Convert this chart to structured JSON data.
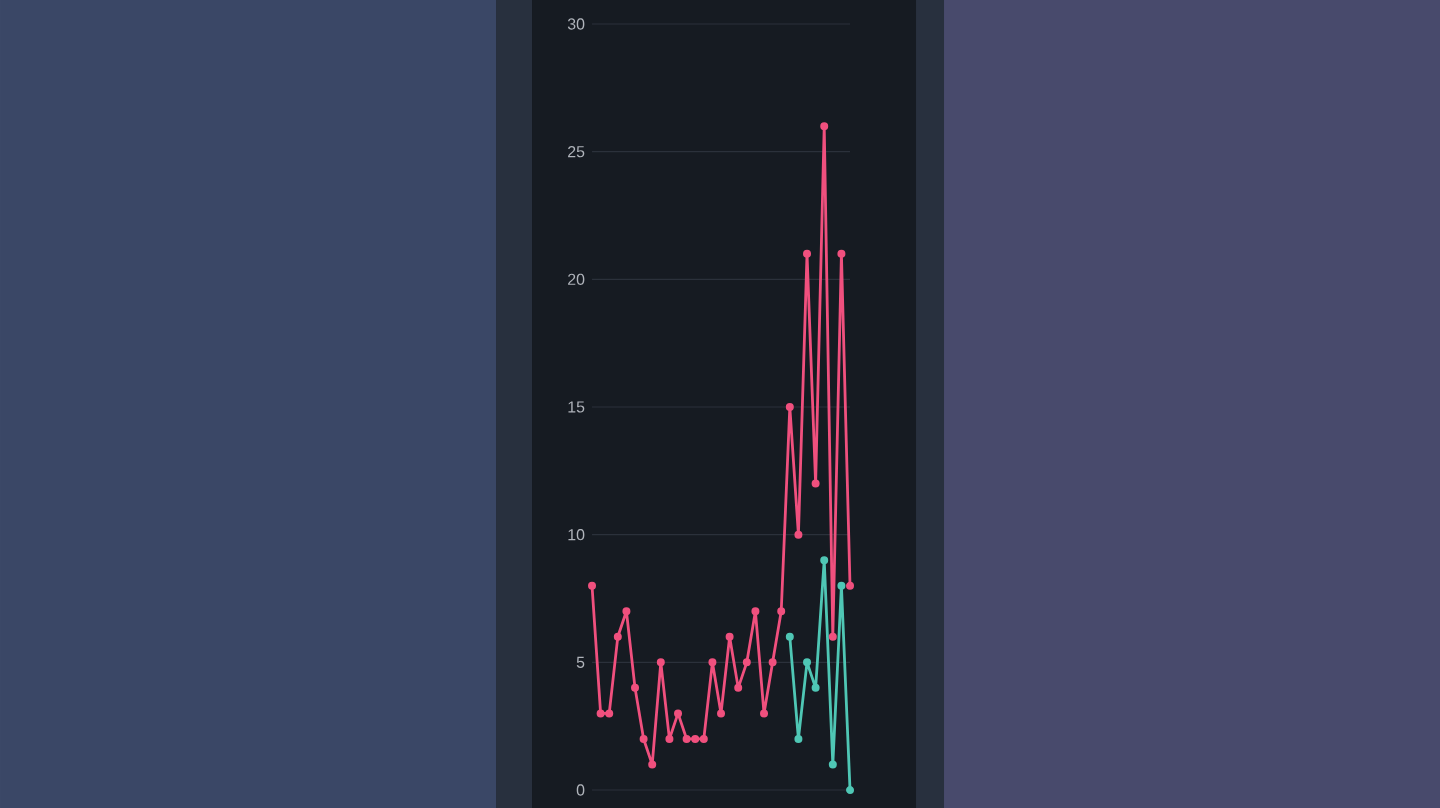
{
  "chart_data": {
    "type": "line",
    "categories": [
      null,
      null,
      null,
      null,
      null,
      null,
      null,
      null,
      null,
      null,
      null,
      null,
      null,
      null,
      null,
      null,
      null,
      null,
      null,
      null,
      null,
      null,
      null,
      null,
      null,
      null,
      null,
      null,
      null,
      null,
      null
    ],
    "series": [
      {
        "color": "#f0507e",
        "values": [
          8,
          3,
          3,
          6,
          7,
          4,
          2,
          1,
          5,
          2,
          3,
          2,
          2,
          2,
          5,
          3,
          6,
          4,
          5,
          7,
          3,
          5,
          7,
          15,
          10,
          21,
          12,
          26,
          6,
          21,
          8
        ]
      },
      {
        "color": "#4fc7b5",
        "values": [
          null,
          null,
          null,
          null,
          null,
          null,
          null,
          null,
          null,
          null,
          null,
          null,
          null,
          null,
          null,
          null,
          null,
          null,
          null,
          null,
          null,
          null,
          null,
          6,
          2,
          5,
          4,
          9,
          1,
          8,
          0
        ]
      }
    ],
    "ylim": [
      0,
      30
    ],
    "yticks": [
      0,
      5,
      10,
      15,
      20,
      25,
      30
    ],
    "grid": "y",
    "tick_labels": "y",
    "marker": "circle",
    "line_style": "solid"
  }
}
